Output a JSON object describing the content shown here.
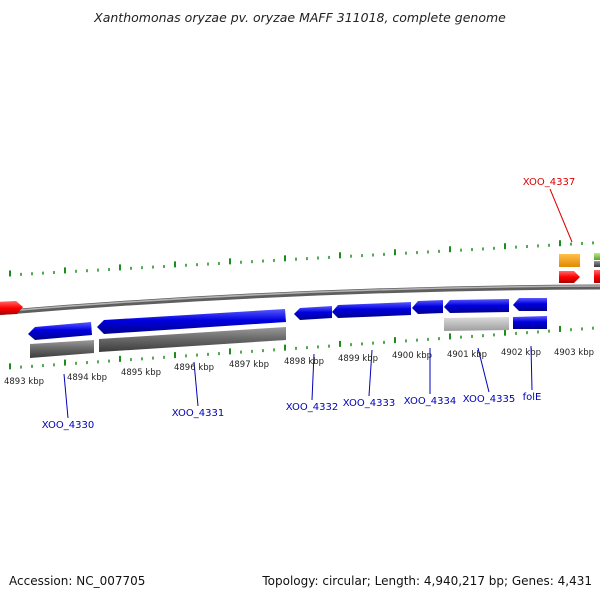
{
  "title": "Xanthomonas oryzae pv. oryzae MAFF 311018, complete genome",
  "footer": {
    "accession": "Accession: NC_007705",
    "topology": "Topology: circular; Length: 4,940,217 bp; Genes: 4,431"
  },
  "colors": {
    "backbone": "#888888",
    "tick": "#1c8c1c",
    "cds_plus": "#0000e0",
    "cds_minus": "#ff0000",
    "gene_track": "#666666",
    "pseudo": "#bbbbbb",
    "orange": "#f39c12",
    "green": "#7ec850",
    "label_blue": "#0000bb",
    "label_red": "#dd0000"
  },
  "kbp_ticks": [
    "4893 kbp",
    "4894 kbp",
    "4895 kbp",
    "4896 kbp",
    "4897 kbp",
    "4898 kbp",
    "4899 kbp",
    "4900 kbp",
    "4901 kbp",
    "4902 kbp",
    "4903 kbp"
  ],
  "gene_labels": [
    {
      "name": "XOO_4330",
      "color": "blue"
    },
    {
      "name": "XOO_4331",
      "color": "blue"
    },
    {
      "name": "XOO_4332",
      "color": "blue"
    },
    {
      "name": "XOO_4333",
      "color": "blue"
    },
    {
      "name": "XOO_4334",
      "color": "blue"
    },
    {
      "name": "XOO_4335",
      "color": "blue"
    },
    {
      "name": "folE",
      "color": "blue"
    },
    {
      "name": "XOO_4337",
      "color": "red"
    }
  ]
}
